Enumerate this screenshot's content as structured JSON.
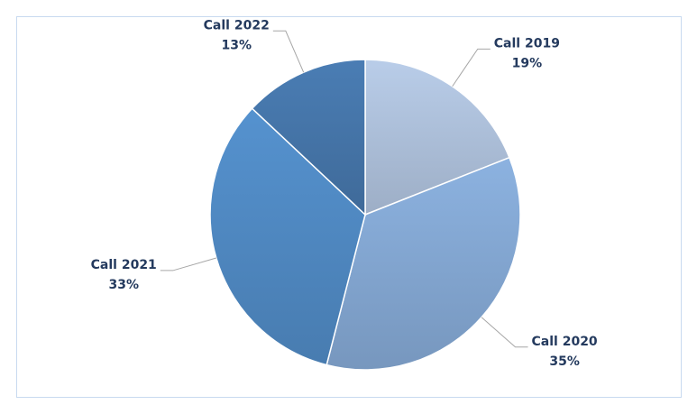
{
  "chart_data": {
    "type": "pie",
    "categories": [
      "Call 2019",
      "Call 2020",
      "Call 2021",
      "Call 2022"
    ],
    "values": [
      19,
      35,
      33,
      13
    ],
    "value_labels": [
      "19%",
      "35%",
      "33%",
      "13%"
    ],
    "colors": [
      "#b9cde9",
      "#8cb2e0",
      "#5592cf",
      "#4a7db4"
    ]
  }
}
